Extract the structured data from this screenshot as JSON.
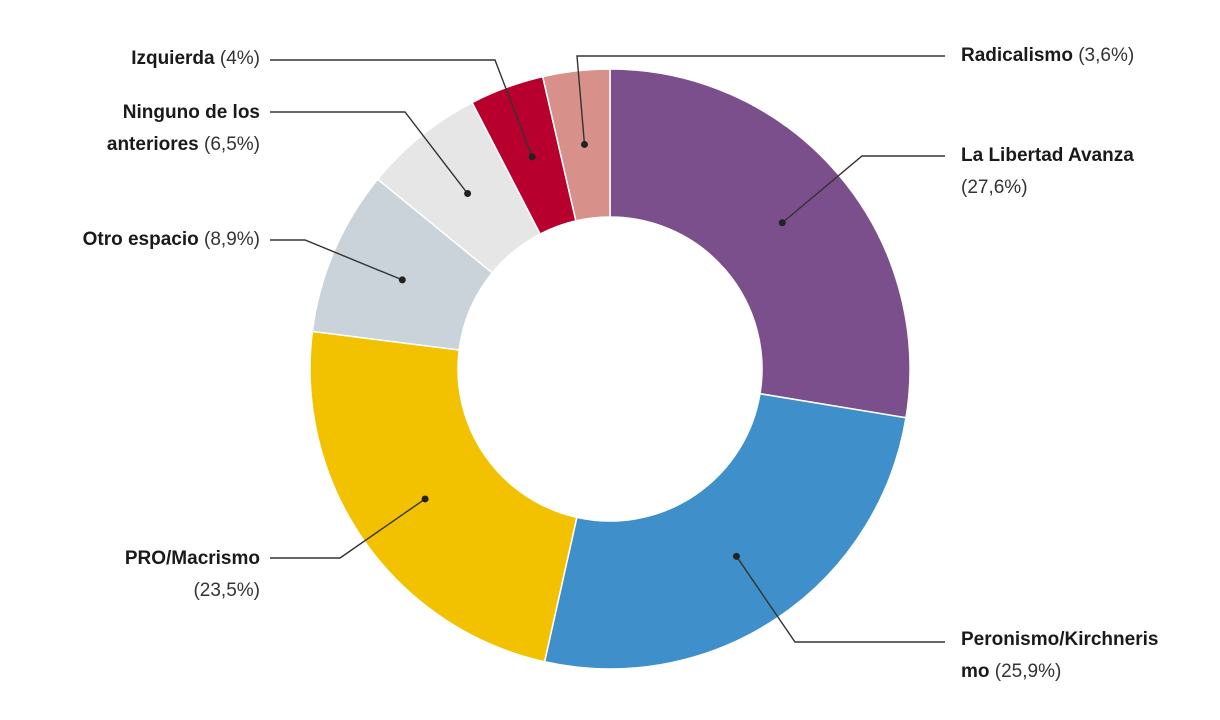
{
  "chart_data": {
    "type": "pie",
    "donut": true,
    "title": "",
    "slices": [
      {
        "label": "La Libertad Avanza",
        "value": 27.6,
        "display": "(27,6%)",
        "color": "#7a4f8c"
      },
      {
        "label": "Peronismo/Kirchnerismo",
        "value": 25.9,
        "display": "(25,9%)",
        "color": "#3f8fca"
      },
      {
        "label": "PRO/Macrismo",
        "value": 23.5,
        "display": "(23,5%)",
        "color": "#f2c200"
      },
      {
        "label": "Otro espacio",
        "value": 8.9,
        "display": "(8,9%)",
        "color": "#c9d3d9"
      },
      {
        "label": "Ninguno de los anteriores",
        "value": 6.5,
        "display": "(6,5%)",
        "color": "#e6e6e6"
      },
      {
        "label": "Izquierda",
        "value": 4.0,
        "display": "(4%)",
        "color": "#b8002f"
      },
      {
        "label": "Radicalismo",
        "value": 3.6,
        "display": "(3,6%)",
        "color": "#d8908b"
      }
    ]
  },
  "labels": {
    "libertad_name": "La Libertad Avanza",
    "libertad_pct": "(27,6%)",
    "peronismo_name_1": "Peronismo/Kirchneris",
    "peronismo_name_2": "mo",
    "peronismo_pct": "(25,9%)",
    "pro_name": "PRO/Macrismo",
    "pro_pct": "(23,5%)",
    "otro_name": "Otro espacio",
    "otro_pct": "(8,9%)",
    "ninguno_name_1": "Ninguno de los",
    "ninguno_name_2": "anteriores",
    "ninguno_pct": "(6,5%)",
    "izquierda_name": "Izquierda",
    "izquierda_pct": "(4%)",
    "radicalismo_name": "Radicalismo",
    "radicalismo_pct": "(3,6%)"
  }
}
